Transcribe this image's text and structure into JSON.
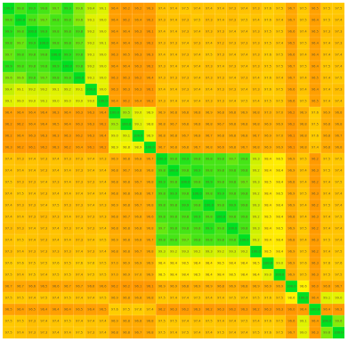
{
  "chart_data": {
    "type": "heatmap",
    "title": "",
    "xlabel": "",
    "ylabel": "",
    "value_range": [
      95.0,
      100.0
    ],
    "colorscale": [
      "#ff8f00",
      "#ffd000",
      "#fff400",
      "#c8f000",
      "#00e020"
    ],
    "grid": true,
    "rows": [
      [
        100.0,
        99.8,
        99.9,
        99.8,
        99.7,
        99.9,
        99.6,
        99.4,
        99.1,
        96.4,
        96.2,
        96.2,
        96.3,
        97.4,
        97.4,
        97.5,
        97.4,
        97.4,
        97.4,
        97.3,
        97.4,
        97.3,
        97.6,
        97.5,
        96.7,
        97.5,
        96.5,
        97.5,
        97.5
      ],
      [
        99.8,
        100.0,
        99.8,
        99.7,
        99.8,
        99.8,
        99.6,
        99.1,
        99.0,
        96.4,
        96.2,
        96.4,
        96.2,
        97.3,
        97.4,
        97.3,
        97.5,
        97.3,
        97.4,
        97.3,
        97.5,
        97.4,
        97.6,
        97.4,
        96.7,
        97.5,
        96.4,
        97.5,
        97.4
      ],
      [
        99.9,
        99.8,
        100.0,
        99.9,
        99.8,
        99.8,
        99.8,
        99.2,
        99.0,
        96.4,
        96.4,
        96.3,
        96.1,
        97.4,
        97.4,
        97.3,
        97.4,
        97.3,
        97.3,
        97.4,
        97.4,
        97.3,
        97.5,
        97.5,
        96.6,
        97.4,
        96.5,
        97.3,
        97.3
      ],
      [
        99.8,
        99.7,
        99.9,
        100.0,
        99.8,
        99.8,
        99.7,
        99.2,
        99.1,
        96.4,
        96.4,
        96.3,
        96.2,
        97.3,
        97.3,
        97.4,
        97.3,
        97.4,
        97.2,
        97.3,
        97.3,
        97.3,
        97.5,
        97.4,
        96.5,
        97.5,
        96.4,
        97.4,
        97.3
      ],
      [
        99.7,
        99.8,
        99.8,
        99.8,
        100.0,
        99.9,
        99.8,
        99.1,
        99.0,
        96.3,
        96.5,
        96.3,
        96.3,
        97.4,
        97.4,
        97.3,
        97.4,
        97.5,
        97.3,
        97.4,
        97.4,
        97.3,
        97.6,
        97.5,
        96.6,
        97.4,
        96.4,
        97.4,
        97.4
      ],
      [
        99.9,
        99.8,
        99.8,
        99.8,
        99.9,
        100.0,
        99.8,
        99.2,
        99.0,
        96.4,
        96.4,
        96.3,
        96.2,
        97.3,
        97.4,
        97.4,
        97.4,
        97.3,
        97.4,
        97.3,
        97.4,
        97.3,
        97.5,
        97.5,
        96.7,
        97.5,
        96.4,
        97.5,
        97.4
      ],
      [
        99.6,
        99.6,
        99.8,
        99.7,
        99.8,
        99.8,
        100.0,
        99.1,
        99.0,
        96.3,
        96.3,
        96.2,
        96.4,
        97.3,
        97.3,
        97.3,
        97.4,
        97.3,
        97.3,
        97.4,
        97.3,
        97.4,
        97.6,
        97.4,
        96.7,
        97.4,
        96.5,
        97.4,
        97.5
      ],
      [
        99.4,
        99.1,
        99.2,
        99.2,
        99.1,
        99.2,
        99.1,
        100.0,
        99.0,
        96.3,
        96.3,
        96.3,
        96.1,
        97.4,
        97.4,
        97.3,
        97.4,
        97.4,
        97.3,
        97.3,
        97.4,
        97.3,
        97.6,
        97.5,
        96.6,
        97.4,
        96.4,
        97.4,
        97.3
      ],
      [
        99.1,
        99.0,
        99.0,
        99.1,
        99.0,
        99.0,
        99.0,
        99.0,
        100.0,
        96.4,
        96.2,
        96.4,
        96.2,
        97.3,
        97.4,
        97.4,
        97.4,
        97.3,
        97.3,
        97.4,
        97.5,
        97.4,
        97.5,
        97.5,
        96.6,
        97.5,
        96.5,
        97.4,
        97.4
      ],
      [
        96.4,
        96.4,
        96.4,
        96.4,
        96.3,
        96.4,
        96.3,
        96.3,
        96.4,
        100.0,
        99.5,
        99.0,
        98.9,
        96.9,
        96.8,
        96.8,
        96.8,
        96.9,
        96.8,
        96.8,
        96.9,
        96.8,
        97.0,
        97.0,
        96.2,
        96.9,
        97.6,
        96.9,
        96.8
      ],
      [
        96.2,
        96.2,
        96.4,
        96.4,
        96.5,
        96.4,
        96.3,
        96.3,
        96.2,
        99.5,
        100.0,
        99.1,
        98.8,
        96.8,
        96.7,
        96.8,
        96.8,
        96.8,
        96.7,
        96.8,
        96.8,
        96.8,
        96.9,
        96.9,
        96.2,
        96.8,
        97.5,
        96.8,
        96.8
      ],
      [
        96.2,
        96.4,
        96.3,
        96.3,
        96.3,
        96.3,
        96.2,
        96.3,
        96.4,
        99.0,
        99.1,
        100.0,
        98.9,
        96.8,
        96.8,
        96.7,
        96.8,
        96.7,
        96.8,
        96.8,
        96.8,
        96.7,
        96.9,
        97.0,
        96.1,
        96.8,
        97.6,
        96.8,
        96.7
      ],
      [
        96.3,
        96.2,
        96.1,
        96.2,
        96.3,
        96.2,
        96.4,
        96.1,
        96.2,
        98.9,
        98.8,
        98.9,
        100.0,
        96.7,
        96.8,
        96.8,
        96.7,
        96.8,
        96.6,
        96.8,
        96.7,
        96.8,
        96.9,
        96.9,
        96.1,
        96.8,
        97.4,
        96.8,
        96.8
      ],
      [
        97.4,
        97.3,
        97.4,
        97.3,
        97.4,
        97.3,
        97.3,
        97.4,
        97.3,
        96.9,
        96.8,
        96.8,
        96.7,
        100.0,
        99.8,
        99.9,
        99.8,
        99.8,
        99.8,
        99.7,
        99.8,
        99.3,
        98.4,
        98.5,
        96.9,
        97.5,
        96.2,
        97.5,
        97.5
      ],
      [
        97.4,
        97.4,
        97.4,
        97.3,
        97.4,
        97.4,
        97.3,
        97.4,
        97.4,
        96.8,
        96.7,
        96.8,
        96.8,
        99.8,
        100.0,
        99.8,
        99.9,
        99.8,
        99.8,
        99.8,
        99.8,
        99.2,
        98.4,
        98.4,
        96.9,
        97.4,
        96.3,
        97.5,
        97.4
      ],
      [
        97.5,
        97.3,
        97.3,
        97.4,
        97.3,
        97.4,
        97.3,
        97.3,
        97.4,
        96.8,
        96.8,
        96.7,
        96.8,
        99.9,
        99.8,
        100.0,
        99.8,
        99.9,
        99.8,
        99.8,
        99.7,
        99.3,
        98.5,
        98.4,
        96.8,
        97.4,
        96.2,
        97.4,
        97.5
      ],
      [
        97.4,
        97.5,
        97.4,
        97.3,
        97.4,
        97.4,
        97.4,
        97.4,
        97.4,
        96.8,
        96.8,
        96.8,
        96.7,
        99.8,
        99.9,
        99.8,
        100.0,
        99.8,
        99.9,
        99.8,
        99.8,
        99.2,
        98.4,
        98.5,
        96.9,
        97.5,
        96.3,
        97.4,
        97.4
      ],
      [
        97.4,
        97.3,
        97.3,
        97.4,
        97.5,
        97.3,
        97.3,
        97.4,
        97.3,
        96.9,
        96.8,
        96.7,
        96.8,
        99.8,
        99.8,
        99.9,
        99.8,
        100.0,
        99.8,
        99.9,
        99.8,
        99.3,
        98.4,
        98.4,
        96.9,
        97.4,
        96.2,
        97.5,
        97.4
      ],
      [
        97.4,
        97.4,
        97.3,
        97.2,
        97.3,
        97.4,
        97.3,
        97.3,
        97.3,
        96.8,
        96.7,
        96.8,
        96.6,
        99.8,
        99.8,
        99.8,
        99.9,
        99.8,
        100.0,
        99.8,
        99.8,
        99.2,
        98.5,
        98.4,
        96.8,
        97.4,
        96.3,
        97.4,
        97.5
      ],
      [
        97.3,
        97.3,
        97.4,
        97.3,
        97.4,
        97.3,
        97.4,
        97.3,
        97.4,
        96.8,
        96.8,
        96.8,
        96.8,
        99.7,
        99.8,
        99.8,
        99.8,
        99.9,
        99.8,
        100.0,
        99.8,
        99.3,
        98.4,
        98.5,
        96.9,
        97.5,
        96.2,
        97.4,
        97.4
      ],
      [
        97.4,
        97.5,
        97.4,
        97.3,
        97.4,
        97.4,
        97.3,
        97.4,
        97.5,
        96.9,
        96.8,
        96.8,
        96.7,
        99.8,
        99.8,
        99.7,
        99.8,
        99.8,
        99.8,
        99.8,
        100.0,
        99.2,
        98.4,
        98.4,
        96.8,
        97.4,
        96.3,
        97.5,
        97.4
      ],
      [
        97.3,
        97.4,
        97.3,
        97.3,
        97.3,
        97.3,
        97.4,
        97.3,
        97.4,
        96.8,
        96.8,
        96.7,
        96.8,
        99.3,
        99.2,
        99.3,
        99.2,
        99.3,
        99.2,
        99.3,
        99.2,
        100.0,
        98.5,
        98.4,
        96.9,
        97.5,
        96.2,
        97.4,
        97.5
      ],
      [
        97.6,
        97.6,
        97.5,
        97.5,
        97.6,
        97.5,
        97.6,
        97.6,
        97.5,
        97.0,
        96.9,
        96.9,
        96.9,
        98.4,
        98.4,
        98.5,
        98.4,
        98.4,
        98.5,
        98.4,
        98.4,
        98.5,
        100.0,
        99.0,
        96.9,
        97.6,
        96.3,
        97.6,
        97.6
      ],
      [
        97.5,
        97.4,
        97.5,
        97.4,
        97.5,
        97.5,
        97.4,
        97.5,
        97.5,
        97.0,
        96.9,
        97.0,
        96.9,
        98.5,
        98.4,
        98.4,
        98.5,
        98.4,
        98.4,
        98.5,
        98.4,
        98.4,
        99.0,
        100.0,
        96.9,
        97.5,
        96.3,
        97.5,
        97.5
      ],
      [
        96.7,
        96.7,
        96.6,
        96.5,
        96.6,
        96.7,
        96.7,
        96.6,
        96.6,
        96.2,
        96.2,
        96.1,
        96.1,
        96.9,
        96.9,
        96.8,
        96.9,
        96.9,
        96.8,
        96.9,
        96.8,
        96.9,
        96.9,
        96.9,
        100.0,
        98.6,
        96.0,
        96.6,
        96.7
      ],
      [
        97.5,
        97.5,
        97.4,
        97.5,
        97.4,
        97.5,
        97.4,
        97.4,
        97.5,
        96.9,
        96.8,
        96.8,
        96.8,
        97.5,
        97.4,
        97.4,
        97.5,
        97.4,
        97.4,
        97.5,
        97.4,
        97.5,
        97.6,
        97.5,
        98.6,
        100.0,
        96.4,
        99.1,
        99.0
      ],
      [
        96.5,
        96.4,
        96.5,
        96.4,
        96.4,
        96.4,
        96.5,
        96.4,
        96.5,
        97.6,
        97.5,
        97.6,
        97.4,
        96.2,
        96.3,
        96.2,
        96.3,
        96.2,
        96.3,
        96.2,
        96.3,
        96.2,
        96.3,
        96.3,
        96.0,
        96.4,
        100.0,
        96.4,
        96.3
      ],
      [
        97.5,
        97.5,
        97.3,
        97.4,
        97.4,
        97.5,
        97.4,
        97.4,
        97.4,
        96.9,
        96.8,
        96.8,
        96.8,
        97.5,
        97.5,
        97.4,
        97.4,
        97.5,
        97.4,
        97.4,
        97.5,
        97.4,
        97.6,
        97.5,
        96.6,
        99.1,
        96.4,
        100.0,
        99.6
      ],
      [
        97.5,
        97.4,
        97.3,
        97.3,
        97.4,
        97.4,
        97.5,
        97.3,
        97.4,
        96.8,
        96.8,
        96.7,
        96.8,
        97.5,
        97.4,
        97.5,
        97.4,
        97.4,
        97.5,
        97.4,
        97.4,
        97.5,
        97.6,
        97.5,
        96.7,
        99.0,
        96.3,
        99.6,
        100.0
      ]
    ]
  }
}
